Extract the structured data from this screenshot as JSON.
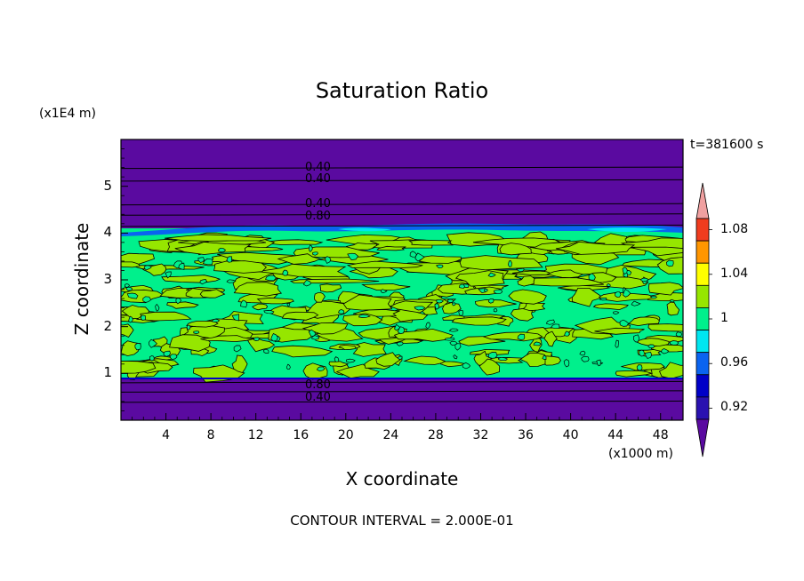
{
  "title": "Saturation Ratio",
  "time_label": "t=381600 s",
  "footer": "CONTOUR INTERVAL = 2.000E-01",
  "chart_data": {
    "type": "heatmap",
    "title": "Saturation Ratio",
    "xlabel": "X coordinate",
    "ylabel": "Z coordinate",
    "x_unit": "(x1000 m)",
    "z_unit": "(x1E4 m)",
    "x_ticks": [
      "4",
      "8",
      "12",
      "16",
      "20",
      "24",
      "28",
      "32",
      "36",
      "40",
      "44",
      "48"
    ],
    "x_tick_values": [
      4,
      8,
      12,
      16,
      20,
      24,
      28,
      32,
      36,
      40,
      44,
      48
    ],
    "z_ticks": [
      "1",
      "2",
      "3",
      "4",
      "5"
    ],
    "z_tick_values": [
      1,
      2,
      3,
      4,
      5
    ],
    "xlim": [
      0,
      50
    ],
    "zlim": [
      0,
      6
    ],
    "colorbar": {
      "labels": [
        "0.92",
        "0.96",
        "1",
        "1.04",
        "1.08"
      ],
      "label_values": [
        0.92,
        0.96,
        1.0,
        1.04,
        1.08
      ],
      "levels": [
        0.9,
        0.92,
        0.94,
        0.96,
        0.98,
        1.0,
        1.02,
        1.04,
        1.06,
        1.08,
        1.1
      ],
      "colors": [
        "#5a0aa0",
        "#2a12b0",
        "#0000c8",
        "#0a64f0",
        "#00e6f0",
        "#00f08c",
        "#96e600",
        "#ffff00",
        "#ff9600",
        "#f03c1e",
        "#f0a0a0"
      ]
    },
    "contour_labels": [
      {
        "text": "0.40",
        "x": 17.8,
        "z": 5.37
      },
      {
        "text": "0.40",
        "x": 17.8,
        "z": 5.13
      },
      {
        "text": "0.40",
        "x": 17.8,
        "z": 4.6
      },
      {
        "text": "0.80",
        "x": 17.8,
        "z": 4.33
      },
      {
        "text": "0.80",
        "x": 17.8,
        "z": 0.73
      },
      {
        "text": "0.40",
        "x": 17.8,
        "z": 0.45
      }
    ],
    "regions": {
      "upper_dry_layer_z": [
        4.1,
        6.0
      ],
      "saturated_layer_z": [
        0.9,
        4.1
      ],
      "lower_dry_layer_z": [
        0.0,
        0.9
      ]
    }
  }
}
